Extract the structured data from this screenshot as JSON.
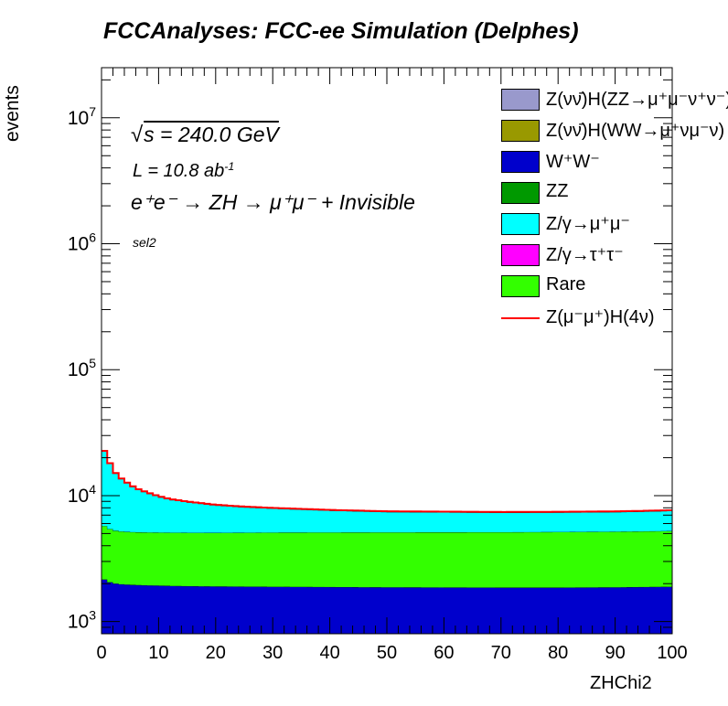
{
  "header": {
    "title": "FCCAnalyses: FCC-ee Simulation (Delphes)"
  },
  "annotations": {
    "sqrt_prefix": "√",
    "energy_text": "s = 240.0 GeV",
    "lumi_main": "L = 10.8 ab",
    "lumi_sup": "-1",
    "process_text": "e⁺e⁻ → ZH → μ⁺μ⁻ + Invisible",
    "selection": "sel2"
  },
  "legend": {
    "entries": [
      {
        "label": "Z(νν̄)H(ZZ→μ⁺μ⁻ν⁺ν⁻)",
        "color": "#9999cc",
        "style": "box"
      },
      {
        "label": "Z(νν̄)H(WW→μ⁺νμ⁻ν)",
        "color": "#999900",
        "style": "box"
      },
      {
        "label": "W⁺W⁻",
        "color": "#0000cc",
        "style": "box"
      },
      {
        "label": "ZZ",
        "color": "#009900",
        "style": "box"
      },
      {
        "label": "Z/γ→μ⁺μ⁻",
        "color": "#00ffff",
        "style": "box"
      },
      {
        "label": "Z/γ→τ⁺τ⁻",
        "color": "#ff00ff",
        "style": "box"
      },
      {
        "label": "Rare",
        "color": "#33ff00",
        "style": "box"
      },
      {
        "label": "Z(μ⁻μ⁺)H(4ν)",
        "color": "#ff0000",
        "style": "line"
      }
    ]
  },
  "chart_data": {
    "type": "area",
    "title": "FCCAnalyses: FCC-ee Simulation (Delphes)",
    "xlabel": "ZHChi2",
    "ylabel": "events",
    "xlim": [
      0,
      100
    ],
    "ylim": [
      800,
      25000000
    ],
    "ylog": true,
    "stacked": true,
    "xticks": [
      0,
      10,
      20,
      30,
      40,
      50,
      60,
      70,
      80,
      90,
      100
    ],
    "yticks": [
      {
        "value": 1000,
        "base": "10",
        "exp": "3"
      },
      {
        "value": 10000,
        "base": "10",
        "exp": "4"
      },
      {
        "value": 100000,
        "base": "10",
        "exp": "5"
      },
      {
        "value": 1000000,
        "base": "10",
        "exp": "6"
      },
      {
        "value": 10000000,
        "base": "10",
        "exp": "7"
      }
    ],
    "x": [
      0,
      1,
      2,
      3,
      4,
      5,
      6,
      8,
      10,
      12,
      15,
      20,
      25,
      30,
      40,
      50,
      60,
      70,
      80,
      90,
      95,
      100
    ],
    "series": [
      {
        "name": "Z/γ→τ⁺τ⁻",
        "color": "#ff00ff",
        "values": [
          810,
          790,
          780,
          775,
          772,
          770,
          770,
          770,
          770,
          770,
          770,
          770,
          770,
          770,
          770,
          770,
          770,
          770,
          770,
          770,
          770,
          770
        ]
      },
      {
        "name": "W⁺W⁻",
        "color": "#0000cc",
        "values": [
          1420,
          1300,
          1240,
          1210,
          1200,
          1190,
          1180,
          1170,
          1160,
          1150,
          1140,
          1130,
          1125,
          1120,
          1110,
          1100,
          1095,
          1090,
          1090,
          1100,
          1110,
          1120
        ]
      },
      {
        "name": "Rare",
        "color": "#33ff00",
        "values": [
          3700,
          3450,
          3300,
          3230,
          3200,
          3180,
          3170,
          3160,
          3160,
          3160,
          3160,
          3160,
          3180,
          3200,
          3220,
          3240,
          3250,
          3260,
          3280,
          3300,
          3320,
          3350
        ]
      },
      {
        "name": "Z/γ→μ⁺μ⁻",
        "color": "#00ffff",
        "values": [
          19000,
          14500,
          10500,
          8900,
          7800,
          7000,
          6200,
          5400,
          4700,
          4200,
          3800,
          3300,
          3000,
          2800,
          2500,
          2300,
          2250,
          2200,
          2200,
          2230,
          2270,
          2320
        ]
      },
      {
        "name": "Z(μ⁻μ⁺)H(4ν)",
        "color": "#ff0000",
        "values": [
          180,
          160,
          150,
          140,
          135,
          130,
          125,
          120,
          115,
          110,
          105,
          100,
          100,
          98,
          96,
          95,
          95,
          95,
          95,
          95,
          95,
          95
        ]
      }
    ]
  }
}
